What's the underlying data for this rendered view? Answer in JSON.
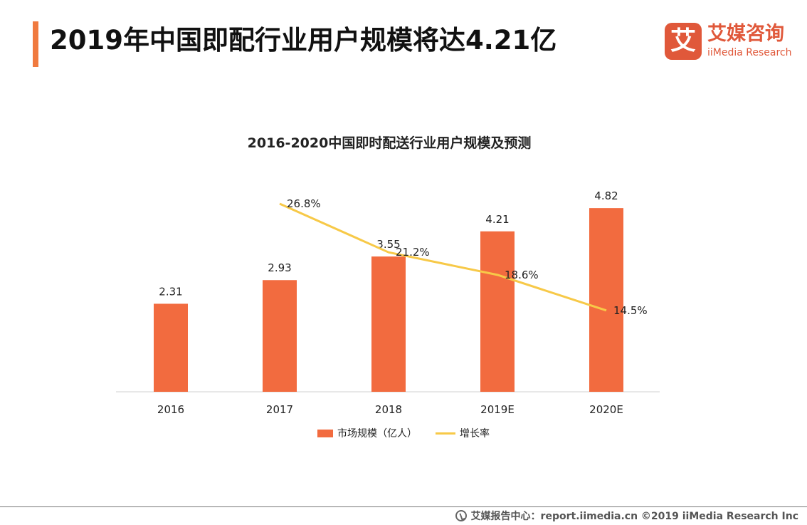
{
  "header": {
    "title": "2019年中国即配行业用户规模将达4.21亿",
    "accent_color": "#F07A3F"
  },
  "logo": {
    "glyph": "艾",
    "name_cn": "艾媒咨询",
    "name_en": "iiMedia Research",
    "brand_color": "#E0583A"
  },
  "chart_data": {
    "type": "bar",
    "title": "2016-2020中国即时配送行业用户规模及预测",
    "categories": [
      "2016",
      "2017",
      "2018",
      "2019E",
      "2020E"
    ],
    "series": [
      {
        "name": "市场规模（亿人）",
        "kind": "bar",
        "color": "#F26B3F",
        "values": [
          2.31,
          2.93,
          3.55,
          4.21,
          4.82
        ],
        "labels": [
          "2.31",
          "2.93",
          "3.55",
          "4.21",
          "4.82"
        ]
      },
      {
        "name": "增长率",
        "kind": "line",
        "color": "#F7C948",
        "values": [
          null,
          26.8,
          21.2,
          18.6,
          14.5
        ],
        "labels": [
          "",
          "26.8%",
          "21.2%",
          "18.6%",
          "14.5%"
        ]
      }
    ],
    "legend_position": "bottom",
    "grid": false
  },
  "footer": {
    "text": "艾媒报告中心：report.iimedia.cn  ©2019  iiMedia Research  Inc"
  }
}
